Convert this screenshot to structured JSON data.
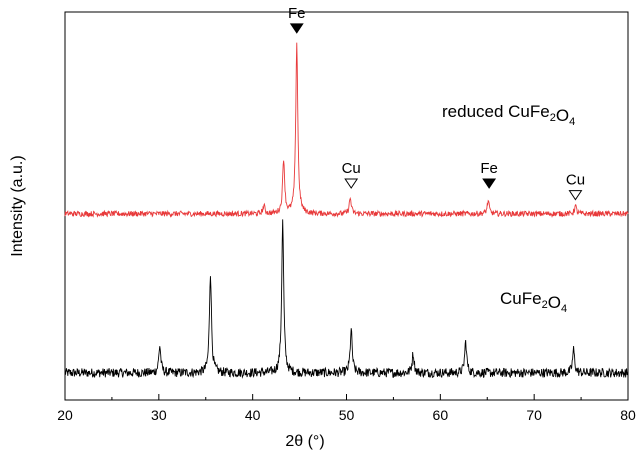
{
  "chart_data": {
    "type": "line",
    "xlabel": "2θ (°)",
    "ylabel": "Intensity (a.u.)",
    "xlim": [
      20,
      80
    ],
    "xticks": [
      20,
      30,
      40,
      50,
      60,
      70,
      80
    ],
    "ylim": [
      0,
      1
    ],
    "grid": false,
    "legend": "none",
    "series": [
      {
        "name": "CuFe2O4",
        "label_main": "CuFe",
        "label_sub1": "2",
        "label_mid": "O",
        "label_sub2": "4",
        "color": "#000000",
        "baseline": 0.07,
        "noise": 0.012,
        "peaks": [
          {
            "x": 30.1,
            "y": 0.07
          },
          {
            "x": 35.5,
            "y": 0.26
          },
          {
            "x": 43.2,
            "y": 0.39
          },
          {
            "x": 50.5,
            "y": 0.11
          },
          {
            "x": 57.1,
            "y": 0.05
          },
          {
            "x": 62.7,
            "y": 0.08
          },
          {
            "x": 74.2,
            "y": 0.06
          }
        ]
      },
      {
        "name": "reduced CuFe2O4",
        "label_main": "reduced CuFe",
        "label_sub1": "2",
        "label_mid": "O",
        "label_sub2": "4",
        "color": "#e8393a",
        "baseline": 0.48,
        "noise": 0.007,
        "peaks": [
          {
            "x": 41.2,
            "y": 0.02
          },
          {
            "x": 43.3,
            "y": 0.14
          },
          {
            "x": 44.7,
            "y": 0.44
          },
          {
            "x": 50.4,
            "y": 0.04
          },
          {
            "x": 65.1,
            "y": 0.033
          },
          {
            "x": 74.4,
            "y": 0.02
          }
        ]
      }
    ],
    "annotations": [
      {
        "text": "Fe",
        "marker": "filled-triangle",
        "x": 44.7,
        "y": 0.985
      },
      {
        "text": "Cu",
        "marker": "open-triangle",
        "x": 50.5,
        "y": 0.585
      },
      {
        "text": "Fe",
        "marker": "filled-triangle",
        "x": 65.2,
        "y": 0.585
      },
      {
        "text": "Cu",
        "marker": "open-triangle",
        "x": 74.4,
        "y": 0.555
      }
    ]
  }
}
